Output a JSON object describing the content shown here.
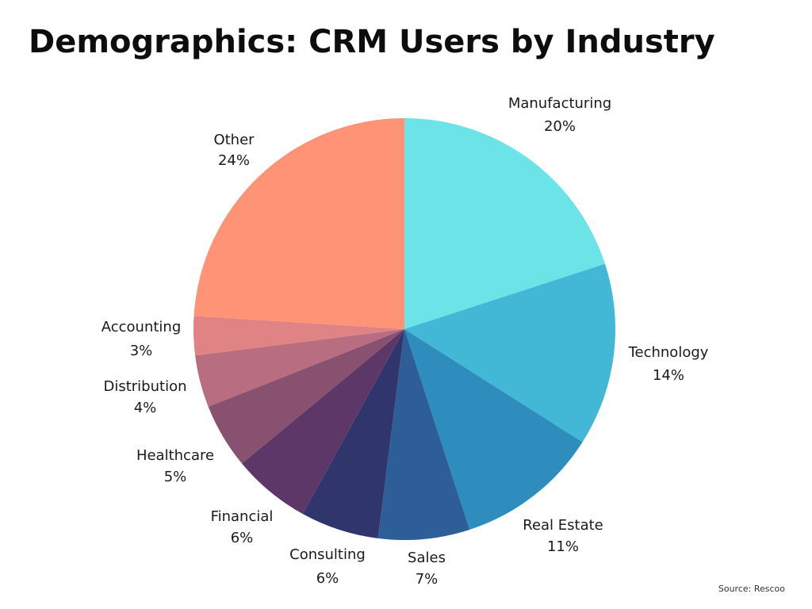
{
  "title": "Demographics: CRM Users by Industry",
  "source": "Source: Rescoo",
  "chart_data": {
    "type": "pie",
    "title": "Demographics: CRM Users by Industry",
    "unit": "%",
    "slices": [
      {
        "label": "Manufacturing",
        "value": 20,
        "value_text": "20%",
        "color": "#6be3e7"
      },
      {
        "label": "Technology",
        "value": 14,
        "value_text": "14%",
        "color": "#43b8d6"
      },
      {
        "label": "Real Estate",
        "value": 11,
        "value_text": "11%",
        "color": "#2e8dbc"
      },
      {
        "label": "Sales",
        "value": 7,
        "value_text": "7%",
        "color": "#2e5e98"
      },
      {
        "label": "Consulting",
        "value": 6,
        "value_text": "6%",
        "color": "#30356c"
      },
      {
        "label": "Financial",
        "value": 6,
        "value_text": "6%",
        "color": "#5d3768"
      },
      {
        "label": "Healthcare",
        "value": 5,
        "value_text": "5%",
        "color": "#87516f"
      },
      {
        "label": "Distribution",
        "value": 4,
        "value_text": "4%",
        "color": "#b86e80"
      },
      {
        "label": "Accounting",
        "value": 3,
        "value_text": "3%",
        "color": "#e08385"
      },
      {
        "label": "Other",
        "value": 24,
        "value_text": "24%",
        "color": "#fe9375"
      }
    ],
    "start": "12 o'clock",
    "direction": "clockwise",
    "legend": "none",
    "labels": "outside"
  }
}
